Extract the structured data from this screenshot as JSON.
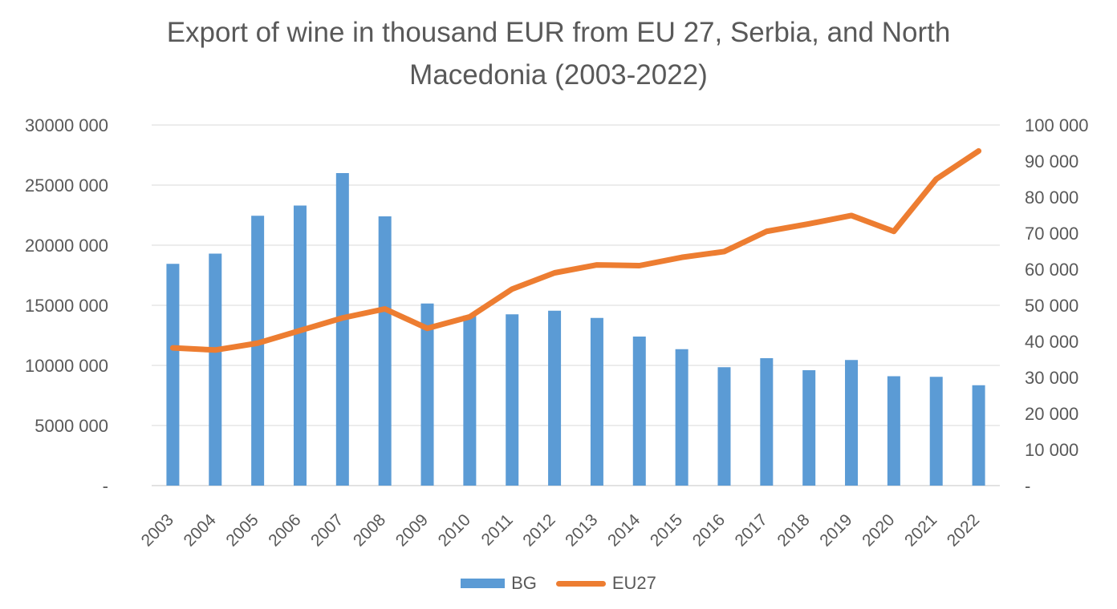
{
  "chart_data": {
    "type": "combo_bar_line",
    "title": "Export of wine in thousand EUR from EU 27, Serbia, and North Macedonia (2003-2022)",
    "categories": [
      "2003",
      "2004",
      "2005",
      "2006",
      "2007",
      "2008",
      "2009",
      "2010",
      "2011",
      "2012",
      "2013",
      "2014",
      "2015",
      "2016",
      "2017",
      "2018",
      "2019",
      "2020",
      "2021",
      "2022"
    ],
    "series": [
      {
        "name": "BG",
        "type": "bar",
        "axis": "left",
        "color": "#5B9BD5",
        "values": [
          18450000,
          19300000,
          22450000,
          23300000,
          26000000,
          22400000,
          15150000,
          14150000,
          14250000,
          14550000,
          13950000,
          12400000,
          11350000,
          9850000,
          10600000,
          9600000,
          10450000,
          9100000,
          9050000,
          8350000
        ]
      },
      {
        "name": "EU27",
        "type": "line",
        "axis": "right",
        "color": "#ED7D31",
        "values": [
          38200,
          37600,
          39500,
          43000,
          46500,
          49000,
          43600,
          46800,
          54500,
          59000,
          61200,
          61000,
          63300,
          64900,
          70500,
          72600,
          74900,
          70500,
          85000,
          92800
        ]
      }
    ],
    "left_axis": {
      "min": 0,
      "max": 30000000,
      "step": 5000000,
      "tick_labels": [
        "-",
        "5000 000",
        "10000 000",
        "15000 000",
        "20000 000",
        "25000 000",
        "30000 000"
      ]
    },
    "right_axis": {
      "min": 0,
      "max": 100000,
      "step": 10000,
      "tick_labels": [
        "-",
        "10 000",
        "20 000",
        "30 000",
        "40 000",
        "50 000",
        "60 000",
        "70 000",
        "80 000",
        "90 000",
        "100 000"
      ]
    },
    "legend": {
      "position": "bottom"
    },
    "grid": true,
    "styles": {
      "grid_color": "#D9D9D9",
      "text_color": "#595959",
      "background": "#FFFFFF"
    }
  }
}
